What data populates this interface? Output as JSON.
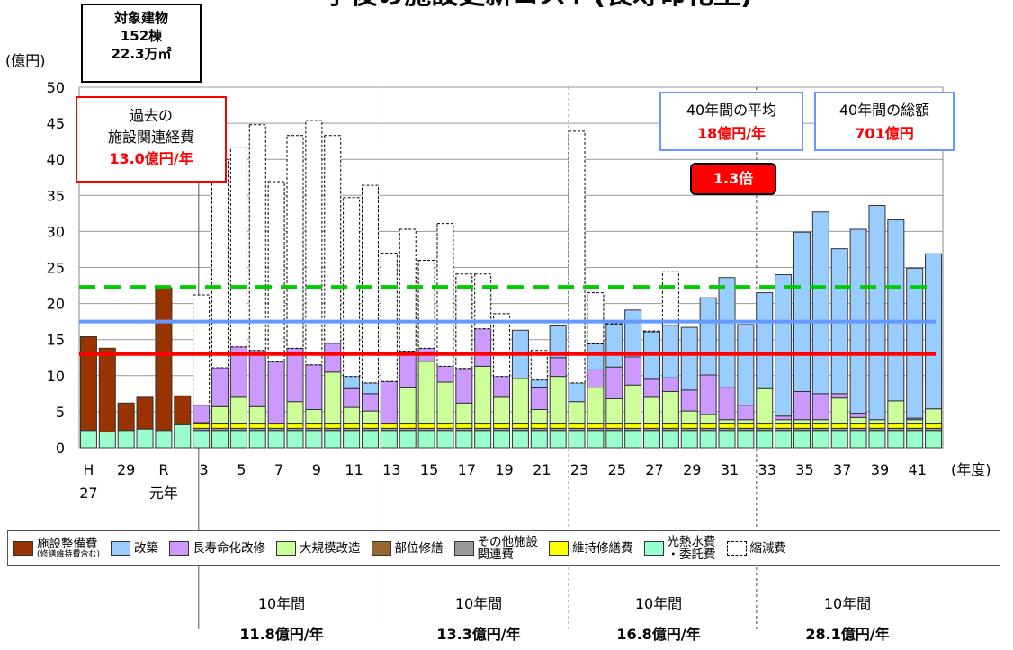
{
  "page_title_partial": "予後の施設更新コスト(長寿命化型)",
  "info_box": {
    "line1": "対象建物",
    "line2": "152棟",
    "line3": "22.3万㎡"
  },
  "past_box": {
    "line1": "過去の",
    "line2": "施設関連経費",
    "line3": "13.0億円/年"
  },
  "avg_box": {
    "line1": "40年間の平均",
    "line2": "18億円/年"
  },
  "total_box": {
    "line1": "40年間の総額",
    "line2": "701億円"
  },
  "ratio_badge": "1.3倍",
  "decades": [
    {
      "label": "10年間",
      "value": "11.8億円/年"
    },
    {
      "label": "10年間",
      "value": "13.3億円/年"
    },
    {
      "label": "10年間",
      "value": "16.8億円/年"
    },
    {
      "label": "10年間",
      "value": "28.1億円/年"
    }
  ],
  "legend": [
    {
      "label": "施設整備費",
      "sub": "(修繕維持費含む)",
      "color": "#993300"
    },
    {
      "label": "改築",
      "color": "#99ccff"
    },
    {
      "label": "長寿命化改修",
      "color": "#cc99ff"
    },
    {
      "label": "大規模改造",
      "color": "#ccff99"
    },
    {
      "label": "部位修繕",
      "color": "#996633"
    },
    {
      "label": "その他施設\n関連費",
      "color": "#999999"
    },
    {
      "label": "維持修繕費",
      "color": "#ffff00"
    },
    {
      "label": "光熱水費\n・委託費",
      "color": "#99ffcc"
    },
    {
      "label": "縮減費",
      "color": "#ffffff",
      "dashed": true
    }
  ],
  "chart_data": {
    "type": "bar",
    "stacked": true,
    "ylabel": "(億円)",
    "xlabel": "(年度)",
    "ylim": [
      0,
      50
    ],
    "yticks": [
      0,
      5,
      10,
      15,
      20,
      25,
      30,
      35,
      40,
      45,
      50
    ],
    "x_tick_labels": [
      {
        "i": 0,
        "label": "H",
        "label2": "27"
      },
      {
        "i": 2,
        "label": "29"
      },
      {
        "i": 4,
        "label": "R",
        "label2": "元年"
      },
      {
        "i": 6,
        "label": "3"
      },
      {
        "i": 8,
        "label": "5"
      },
      {
        "i": 10,
        "label": "7"
      },
      {
        "i": 12,
        "label": "9"
      },
      {
        "i": 14,
        "label": "11"
      },
      {
        "i": 16,
        "label": "13"
      },
      {
        "i": 18,
        "label": "15"
      },
      {
        "i": 20,
        "label": "17"
      },
      {
        "i": 22,
        "label": "19"
      },
      {
        "i": 24,
        "label": "21"
      },
      {
        "i": 26,
        "label": "23"
      },
      {
        "i": 28,
        "label": "25"
      },
      {
        "i": 30,
        "label": "27"
      },
      {
        "i": 32,
        "label": "29"
      },
      {
        "i": 34,
        "label": "31"
      },
      {
        "i": 36,
        "label": "33"
      },
      {
        "i": 38,
        "label": "35"
      },
      {
        "i": 40,
        "label": "37"
      },
      {
        "i": 42,
        "label": "39"
      },
      {
        "i": 44,
        "label": "41"
      }
    ],
    "past_bars": [
      {
        "utility": 2.4,
        "facility": 13.0
      },
      {
        "utility": 2.2,
        "facility": 11.6
      },
      {
        "utility": 2.4,
        "facility": 3.8
      },
      {
        "utility": 2.6,
        "facility": 4.4
      },
      {
        "utility": 2.4,
        "facility": 19.8
      },
      {
        "utility": 3.2,
        "facility": 4.0
      }
    ],
    "future_bars": [
      {
        "kaichiku": 0,
        "choju": 2.4,
        "daikibo": 0.2,
        "shukugen": 21.2
      },
      {
        "kaichiku": 0,
        "choju": 5.4,
        "daikibo": 2.4,
        "shukugen": 40.0
      },
      {
        "kaichiku": 0,
        "choju": 7.0,
        "daikibo": 3.7,
        "shukugen": 41.7
      },
      {
        "kaichiku": 0,
        "choju": 7.8,
        "daikibo": 2.4,
        "shukugen": 44.8
      },
      {
        "kaichiku": 0,
        "choju": 8.6,
        "daikibo": 0,
        "shukugen": 36.9
      },
      {
        "kaichiku": 0,
        "choju": 7.4,
        "daikibo": 3.1,
        "shukugen": 43.3
      },
      {
        "kaichiku": 0,
        "choju": 6.2,
        "daikibo": 2.0,
        "shukugen": 45.4
      },
      {
        "kaichiku": 0,
        "choju": 4.0,
        "daikibo": 7.2,
        "shukugen": 43.3
      },
      {
        "kaichiku": 1.7,
        "choju": 2.6,
        "daikibo": 2.3,
        "shukugen": 34.7
      },
      {
        "kaichiku": 1.5,
        "choju": 2.4,
        "daikibo": 1.8,
        "shukugen": 36.4
      },
      {
        "kaichiku": 0,
        "choju": 5.8,
        "daikibo": 0.1,
        "shukugen": 27.0
      },
      {
        "kaichiku": 0,
        "choju": 5.1,
        "daikibo": 5.0,
        "shukugen": 30.3
      },
      {
        "kaichiku": 0,
        "choju": 1.8,
        "daikibo": 8.7,
        "shukugen": 26.0
      },
      {
        "kaichiku": 0,
        "choju": 2.2,
        "daikibo": 5.8,
        "shukugen": 31.1
      },
      {
        "kaichiku": 0,
        "choju": 4.8,
        "daikibo": 2.9,
        "shukugen": 24.1
      },
      {
        "kaichiku": 0,
        "choju": 5.2,
        "daikibo": 8.0,
        "shukugen": 24.1
      },
      {
        "kaichiku": 0,
        "choju": 2.9,
        "daikibo": 3.7,
        "shukugen": 18.6
      },
      {
        "kaichiku": 6.7,
        "choju": 0,
        "daikibo": 6.3,
        "shukugen": 16.3
      },
      {
        "kaichiku": 1.1,
        "choju": 3.0,
        "daikibo": 2.0,
        "shukugen": 13.5
      },
      {
        "kaichiku": 4.4,
        "choju": 2.6,
        "daikibo": 6.6,
        "shukugen": 16.9
      },
      {
        "kaichiku": 2.6,
        "choju": 0,
        "daikibo": 3.1,
        "shukugen": 43.9
      },
      {
        "kaichiku": 3.6,
        "choju": 2.4,
        "daikibo": 5.1,
        "shukugen": 21.5
      },
      {
        "kaichiku": 5.9,
        "choju": 4.4,
        "daikibo": 3.5,
        "shukugen": 17.2
      },
      {
        "kaichiku": 6.5,
        "choju": 3.9,
        "daikibo": 5.4,
        "shukugen": 19.1
      },
      {
        "kaichiku": 6.6,
        "choju": 2.5,
        "daikibo": 3.7,
        "shukugen": 16.2
      },
      {
        "kaichiku": 7.3,
        "choju": 1.9,
        "daikibo": 4.5,
        "shukugen": 24.4
      },
      {
        "kaichiku": 8.7,
        "choju": 2.9,
        "daikibo": 1.8,
        "shukugen": 16.7
      },
      {
        "kaichiku": 10.7,
        "choju": 5.5,
        "daikibo": 1.3,
        "shukugen": 20.8
      },
      {
        "kaichiku": 15.2,
        "choju": 4.5,
        "daikibo": 0.6,
        "shukugen": 23.5
      },
      {
        "kaichiku": 11.2,
        "choju": 2.0,
        "daikibo": 0.6,
        "shukugen": 16.9
      },
      {
        "kaichiku": 13.3,
        "choju": 0,
        "daikibo": 4.9,
        "shukugen": 21.4
      },
      {
        "kaichiku": 19.6,
        "choju": 0.5,
        "daikibo": 0.6,
        "shukugen": 23.4
      },
      {
        "kaichiku": 22.1,
        "choju": 3.9,
        "daikibo": 0.6,
        "shukugen": 29.1
      },
      {
        "kaichiku": 25.2,
        "choju": 3.6,
        "daikibo": 0.6,
        "shukugen": 32.6
      },
      {
        "kaichiku": 20.1,
        "choju": 0.6,
        "daikibo": 3.6,
        "shukugen": 27.6
      },
      {
        "kaichiku": 25.5,
        "choju": 0.6,
        "daikibo": 0.9,
        "shukugen": 30.3
      },
      {
        "kaichiku": 29.7,
        "choju": 0,
        "daikibo": 0.6,
        "shukugen": 33.5
      },
      {
        "kaichiku": 25.1,
        "choju": 0,
        "daikibo": 3.2,
        "shukugen": 31.5
      },
      {
        "kaichiku": 20.8,
        "choju": 0.2,
        "daikibo": 0.6,
        "shukugen": 24.8
      },
      {
        "kaichiku": 21.5,
        "choju": 0,
        "daikibo": 2.1,
        "shukugen": 26.9
      }
    ],
    "future_base": {
      "utility": 2.4,
      "other": 0.3,
      "maintenance": 0.6
    },
    "reference_lines": [
      {
        "value": 13.0,
        "color": "#ff0000",
        "style": "solid"
      },
      {
        "value": 17.5,
        "color": "#6699ff",
        "style": "solid"
      },
      {
        "value": 22.3,
        "color": "#00cc00",
        "style": "dashed"
      }
    ],
    "colors": {
      "facility": "#993300",
      "kaichiku": "#99ccff",
      "choju": "#cc99ff",
      "daikibo": "#ccff99",
      "other": "#999999",
      "maintenance": "#ffff00",
      "utility": "#99ffcc",
      "shukugen": "#ffffff"
    }
  }
}
